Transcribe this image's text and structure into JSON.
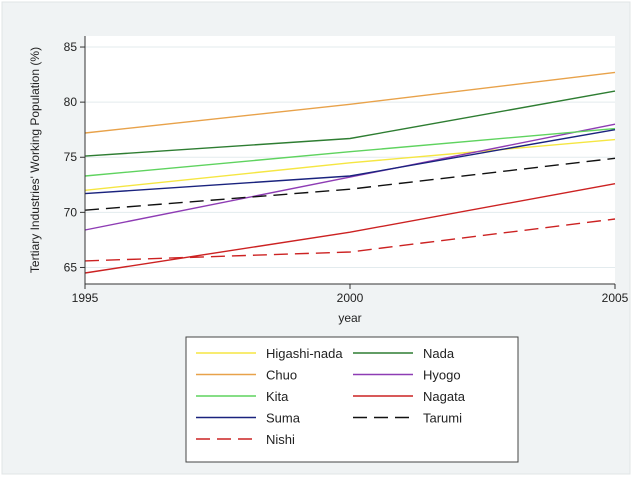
{
  "chart_data": {
    "type": "line",
    "xlabel": "year",
    "ylabel": "Tertiary Industries' Working Population (%)",
    "x": [
      1995,
      2000,
      2005
    ],
    "xticks": [
      "1995",
      "2000",
      "2005"
    ],
    "yticks": [
      "65",
      "70",
      "75",
      "80",
      "85"
    ],
    "xlim": [
      1995,
      2005
    ],
    "ylim": [
      63.5,
      86
    ],
    "grid": "horizontal",
    "legend_position": "bottom",
    "series": [
      {
        "name": "Higashi-nada",
        "color": "#f5e642",
        "dash": "solid",
        "values": [
          72.0,
          74.5,
          76.6
        ]
      },
      {
        "name": "Nada",
        "color": "#2e7d32",
        "dash": "solid",
        "values": [
          75.1,
          76.7,
          81.0
        ]
      },
      {
        "name": "Chuo",
        "color": "#e8a24a",
        "dash": "solid",
        "values": [
          77.2,
          79.8,
          82.7
        ]
      },
      {
        "name": "Hyogo",
        "color": "#8e3cb4",
        "dash": "solid",
        "values": [
          68.4,
          73.2,
          78.0
        ]
      },
      {
        "name": "Kita",
        "color": "#5fd35f",
        "dash": "solid",
        "values": [
          73.3,
          75.5,
          77.6
        ]
      },
      {
        "name": "Nagata",
        "color": "#cc2222",
        "dash": "solid",
        "values": [
          64.5,
          68.2,
          72.6
        ]
      },
      {
        "name": "Suma",
        "color": "#1a237e",
        "dash": "solid",
        "values": [
          71.7,
          73.3,
          77.5
        ]
      },
      {
        "name": "Tarumi",
        "color": "#111111",
        "dash": "long",
        "values": [
          70.2,
          72.1,
          74.9
        ]
      },
      {
        "name": "Nishi",
        "color": "#cc2222",
        "dash": "long",
        "values": [
          65.6,
          66.4,
          69.4
        ]
      }
    ]
  }
}
